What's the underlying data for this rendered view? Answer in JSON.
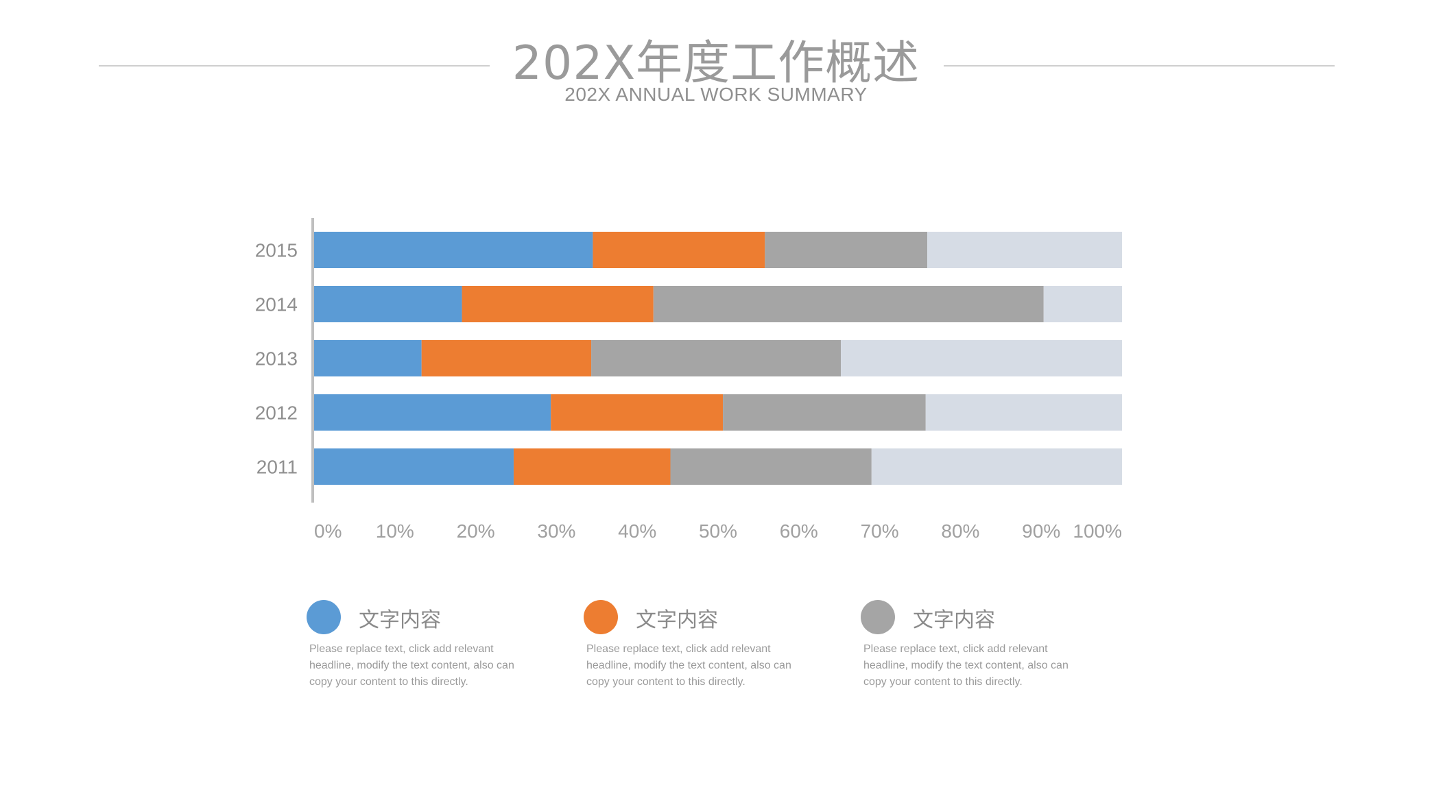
{
  "header": {
    "title": "202X年度工作概述",
    "subtitle": "202X ANNUAL WORK SUMMARY"
  },
  "colors": {
    "blue": "#5b9bd5",
    "orange": "#ed7d31",
    "gray": "#a5a5a5",
    "rest": "#d6dce5",
    "axis": "#bfbfbf",
    "label": "#8f8f8f"
  },
  "chart_data": {
    "type": "bar",
    "orientation": "horizontal",
    "stacked": "100%",
    "categories": [
      "2015",
      "2014",
      "2013",
      "2012",
      "2011"
    ],
    "series": [
      {
        "name": "文字内容",
        "color": "#5b9bd5",
        "values": [
          34.5,
          18.3,
          13.3,
          29.3,
          24.7
        ]
      },
      {
        "name": "文字内容",
        "color": "#ed7d31",
        "values": [
          21.3,
          23.7,
          21.0,
          21.3,
          19.4
        ]
      },
      {
        "name": "文字内容",
        "color": "#a5a5a5",
        "values": [
          20.1,
          48.3,
          30.9,
          25.1,
          24.9
        ]
      },
      {
        "name": "",
        "color": "#d6dce5",
        "values": [
          24.1,
          9.7,
          34.8,
          24.3,
          31.0
        ]
      }
    ],
    "xlim": [
      0,
      100
    ],
    "x_ticks": [
      "0%",
      "10%",
      "20%",
      "30%",
      "40%",
      "50%",
      "60%",
      "70%",
      "80%",
      "90%",
      "100%"
    ],
    "grid": false
  },
  "legend": [
    {
      "label": "文字内容",
      "color": "#5b9bd5",
      "desc": "Please replace text, click add relevant headline, modify the text content, also can copy your content to this directly."
    },
    {
      "label": "文字内容",
      "color": "#ed7d31",
      "desc": "Please replace text, click add relevant headline, modify the text content, also can copy your content to this directly."
    },
    {
      "label": "文字内容",
      "color": "#a5a5a5",
      "desc": "Please replace text, click add relevant headline, modify the text content, also can copy your content to this directly."
    }
  ]
}
